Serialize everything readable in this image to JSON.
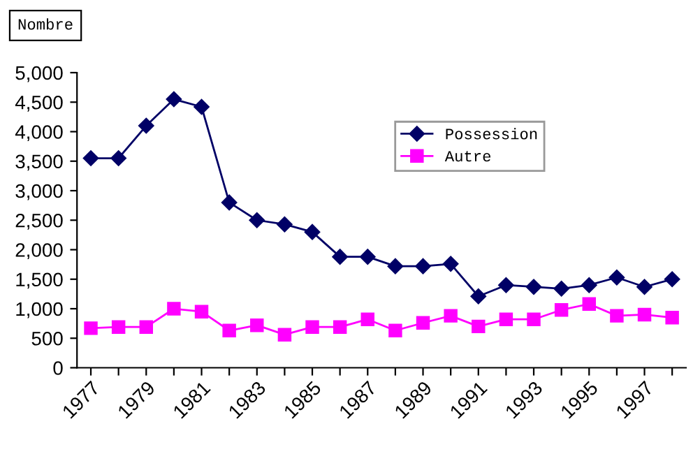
{
  "chart_data": {
    "type": "line",
    "ylabel": "Nombre",
    "categories": [
      "1977",
      null,
      "1979",
      null,
      "1981",
      null,
      "1983",
      null,
      "1985",
      null,
      "1987",
      null,
      "1989",
      null,
      "1991",
      null,
      "1993",
      null,
      "1995",
      null,
      "1997",
      null
    ],
    "series": [
      {
        "name": "Possession",
        "color": "#000066",
        "marker": "diamond",
        "values": [
          3550,
          3550,
          4100,
          4550,
          4420,
          2800,
          2500,
          2430,
          2300,
          1880,
          1880,
          1720,
          1720,
          1760,
          1210,
          1400,
          1370,
          1340,
          1400,
          1530,
          1370,
          1500
        ]
      },
      {
        "name": "Autre",
        "color": "#ff00ff",
        "marker": "square",
        "values": [
          670,
          690,
          690,
          1000,
          950,
          630,
          720,
          560,
          690,
          690,
          820,
          630,
          760,
          880,
          700,
          820,
          820,
          980,
          1080,
          880,
          900,
          850
        ]
      }
    ],
    "ylim": [
      0,
      5000
    ],
    "yticks": [
      {
        "value": 0,
        "label": "0"
      },
      {
        "value": 500,
        "label": "500"
      },
      {
        "value": 1000,
        "label": "1,000"
      },
      {
        "value": 1500,
        "label": "1,500"
      },
      {
        "value": 2000,
        "label": "2,000"
      },
      {
        "value": 2500,
        "label": "2,500"
      },
      {
        "value": 3000,
        "label": "3,000"
      },
      {
        "value": 3500,
        "label": "3,500"
      },
      {
        "value": 4000,
        "label": "4,000"
      },
      {
        "value": 4500,
        "label": "4,500"
      },
      {
        "value": 5000,
        "label": "5,000"
      }
    ],
    "grid": false,
    "legend": "top right"
  }
}
